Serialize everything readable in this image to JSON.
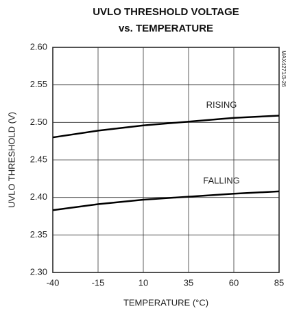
{
  "chart_data": {
    "type": "line",
    "title": [
      "UVLO THRESHOLD VOLTAGE",
      "vs. TEMPERATURE"
    ],
    "figure_id": "MAX4271/3-26",
    "x_label": "TEMPERATURE (°C)",
    "y_label": "UVLO THRESHOLD (V)",
    "x": [
      -40,
      -15,
      10,
      35,
      60,
      85
    ],
    "series": [
      {
        "name": "RISING",
        "color": "#000000",
        "values": [
          2.48,
          2.489,
          2.496,
          2.501,
          2.506,
          2.509
        ]
      },
      {
        "name": "FALLING",
        "color": "#000000",
        "values": [
          2.383,
          2.391,
          2.397,
          2.401,
          2.405,
          2.408
        ]
      }
    ],
    "xlim": [
      -40,
      85
    ],
    "xticks": [
      -40,
      -15,
      10,
      35,
      60,
      85
    ],
    "ylim": [
      2.3,
      2.6
    ],
    "yticks": [
      {
        "value": 2.3,
        "label": "2.30"
      },
      2.35,
      {
        "value": 2.4,
        "label": "2.40"
      },
      2.45,
      {
        "value": 2.5,
        "label": "2.50"
      },
      2.55,
      {
        "value": 2.6,
        "label": "2.60"
      }
    ],
    "grid": true
  }
}
